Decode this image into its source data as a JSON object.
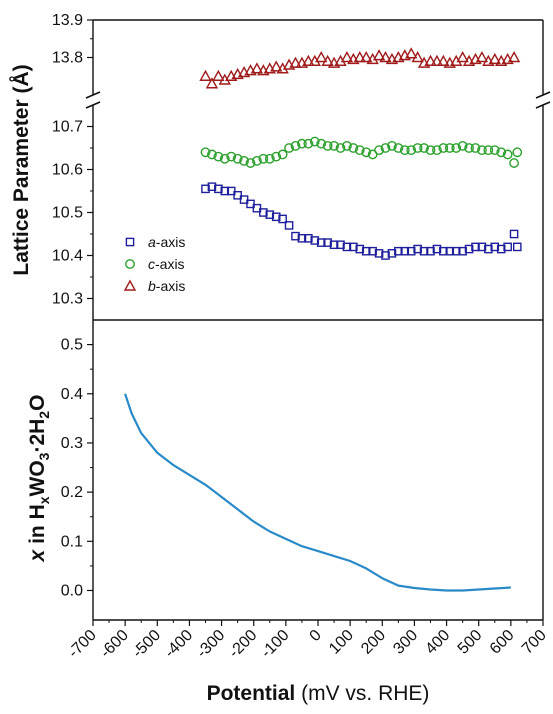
{
  "chart_data": [
    {
      "type": "scatter",
      "ylabel": "Lattice Parameter (Å)",
      "broken_axis": true,
      "ylim_upper": [
        13.7,
        13.9
      ],
      "ylim_lower": [
        10.25,
        10.75
      ],
      "yticks_upper": [
        "13.8",
        "13.9"
      ],
      "yticks_lower": [
        "10.3",
        "10.4",
        "10.5",
        "10.6",
        "10.7"
      ],
      "xlim": [
        -700,
        700
      ],
      "legend_placement": "lower-left",
      "series": [
        {
          "name": "a-axis",
          "name_italic": "a",
          "name_rest": "-axis",
          "marker": "square",
          "color": "#1f1f9c",
          "x": [
            -350,
            -330,
            -310,
            -290,
            -270,
            -250,
            -230,
            -210,
            -190,
            -170,
            -150,
            -130,
            -110,
            -90,
            -70,
            -50,
            -30,
            -10,
            10,
            30,
            50,
            70,
            90,
            110,
            130,
            150,
            170,
            190,
            210,
            230,
            250,
            270,
            290,
            310,
            330,
            350,
            370,
            390,
            410,
            430,
            450,
            470,
            490,
            510,
            530,
            550,
            570,
            590,
            610,
            620
          ],
          "y": [
            10.555,
            10.56,
            10.555,
            10.55,
            10.55,
            10.54,
            10.53,
            10.52,
            10.51,
            10.5,
            10.495,
            10.49,
            10.485,
            10.47,
            10.445,
            10.44,
            10.44,
            10.435,
            10.43,
            10.43,
            10.425,
            10.425,
            10.42,
            10.42,
            10.415,
            10.41,
            10.41,
            10.405,
            10.4,
            10.405,
            10.41,
            10.41,
            10.41,
            10.415,
            10.41,
            10.41,
            10.415,
            10.41,
            10.41,
            10.41,
            10.41,
            10.415,
            10.42,
            10.42,
            10.415,
            10.42,
            10.415,
            10.42,
            10.45,
            10.42
          ]
        },
        {
          "name": "c-axis",
          "name_italic": "c",
          "name_rest": "-axis",
          "marker": "circle",
          "color": "#2ca02c",
          "x": [
            -350,
            -330,
            -310,
            -290,
            -270,
            -250,
            -230,
            -210,
            -190,
            -170,
            -150,
            -130,
            -110,
            -90,
            -70,
            -50,
            -30,
            -10,
            10,
            30,
            50,
            70,
            90,
            110,
            130,
            150,
            170,
            190,
            210,
            230,
            250,
            270,
            290,
            310,
            330,
            350,
            370,
            390,
            410,
            430,
            450,
            470,
            490,
            510,
            530,
            550,
            570,
            590,
            610,
            620
          ],
          "y": [
            10.64,
            10.635,
            10.63,
            10.625,
            10.63,
            10.625,
            10.62,
            10.615,
            10.62,
            10.625,
            10.625,
            10.63,
            10.635,
            10.65,
            10.655,
            10.66,
            10.66,
            10.665,
            10.66,
            10.655,
            10.655,
            10.65,
            10.655,
            10.65,
            10.645,
            10.64,
            10.635,
            10.645,
            10.65,
            10.655,
            10.65,
            10.645,
            10.645,
            10.65,
            10.65,
            10.645,
            10.645,
            10.65,
            10.65,
            10.65,
            10.655,
            10.65,
            10.65,
            10.645,
            10.645,
            10.645,
            10.64,
            10.635,
            10.615,
            10.64
          ]
        },
        {
          "name": "b-axis",
          "name_italic": "b",
          "name_rest": "-axis",
          "marker": "triangle",
          "color": "#a01c1c",
          "x": [
            -350,
            -330,
            -310,
            -290,
            -270,
            -250,
            -230,
            -210,
            -190,
            -170,
            -150,
            -130,
            -110,
            -90,
            -70,
            -50,
            -30,
            -10,
            10,
            30,
            50,
            70,
            90,
            110,
            130,
            150,
            170,
            190,
            210,
            230,
            250,
            270,
            290,
            310,
            330,
            350,
            370,
            390,
            410,
            430,
            450,
            470,
            490,
            510,
            530,
            550,
            570,
            590,
            610
          ],
          "y": [
            13.75,
            13.73,
            13.75,
            13.74,
            13.75,
            13.755,
            13.76,
            13.765,
            13.77,
            13.765,
            13.77,
            13.775,
            13.77,
            13.78,
            13.785,
            13.785,
            13.79,
            13.79,
            13.8,
            13.79,
            13.785,
            13.79,
            13.8,
            13.795,
            13.8,
            13.8,
            13.795,
            13.805,
            13.8,
            13.795,
            13.8,
            13.805,
            13.81,
            13.8,
            13.785,
            13.79,
            13.79,
            13.79,
            13.785,
            13.79,
            13.8,
            13.79,
            13.795,
            13.8,
            13.79,
            13.795,
            13.79,
            13.795,
            13.8
          ]
        }
      ]
    },
    {
      "type": "line",
      "ylabel_parts": [
        "x",
        " in H",
        "x",
        "WO",
        "3",
        "·2H",
        "2",
        "O"
      ],
      "xlabel_bold": "Potential",
      "xlabel_rest": " (mV vs. RHE)",
      "xlim": [
        -700,
        700
      ],
      "ylim": [
        -0.06,
        0.55
      ],
      "xticks": [
        "-700",
        "-600",
        "-500",
        "-400",
        "-300",
        "-200",
        "-100",
        "0",
        "100",
        "200",
        "300",
        "400",
        "500",
        "600",
        "700"
      ],
      "yticks": [
        "0.0",
        "0.1",
        "0.2",
        "0.3",
        "0.4",
        "0.5"
      ],
      "series": [
        {
          "color": "#2a8ac8",
          "x": [
            -600,
            -580,
            -550,
            -500,
            -450,
            -400,
            -350,
            -300,
            -250,
            -200,
            -150,
            -100,
            -50,
            0,
            50,
            100,
            150,
            200,
            250,
            300,
            350,
            400,
            450,
            500,
            550,
            600
          ],
          "y": [
            0.4,
            0.36,
            0.32,
            0.28,
            0.255,
            0.235,
            0.215,
            0.19,
            0.165,
            0.14,
            0.12,
            0.105,
            0.09,
            0.08,
            0.07,
            0.06,
            0.045,
            0.025,
            0.01,
            0.005,
            0.002,
            0.0,
            0.0,
            0.002,
            0.004,
            0.006
          ]
        }
      ]
    }
  ]
}
